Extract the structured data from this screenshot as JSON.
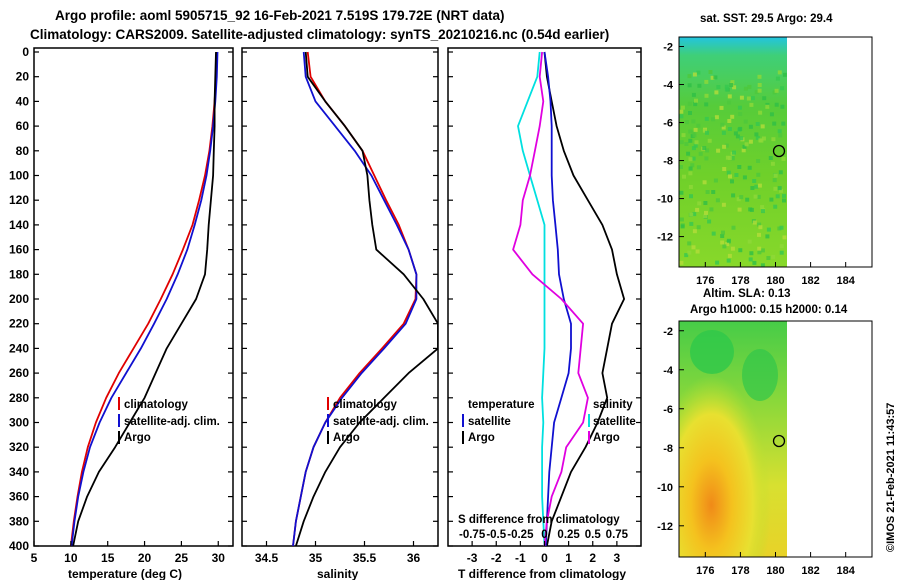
{
  "header": {
    "line1": "Argo profile: aoml 5905715_92 16-Feb-2021 7.519S 179.72E (NRT data)",
    "line2": "Climatology: CARS2009. Satellite-adjusted climatology: synTS_20210216.nc (0.54d earlier)"
  },
  "colors": {
    "climatology": "#e00000",
    "satellite": "#1010d0",
    "argo": "#000000",
    "salinity_diff": "#e000e0",
    "temperature_diff": "#00e0e0"
  },
  "chart_data": [
    {
      "type": "line",
      "panel": "temperature",
      "xlabel": "temperature (deg C)",
      "ylabel": "",
      "xlim": [
        5,
        32
      ],
      "ylim": [
        400,
        0
      ],
      "xticks": [
        5,
        10,
        15,
        20,
        25,
        30
      ],
      "yticks": [
        0,
        20,
        40,
        60,
        80,
        100,
        120,
        140,
        160,
        180,
        200,
        220,
        240,
        260,
        280,
        300,
        320,
        340,
        360,
        380,
        400
      ],
      "depth": [
        0,
        20,
        40,
        60,
        80,
        100,
        120,
        140,
        160,
        180,
        200,
        220,
        240,
        260,
        280,
        300,
        320,
        340,
        360,
        380,
        400
      ],
      "series": [
        {
          "name": "climatology",
          "values": [
            29.8,
            29.7,
            29.5,
            29.2,
            28.8,
            28.2,
            27.4,
            26.5,
            25.2,
            23.8,
            22.2,
            20.5,
            18.5,
            16.5,
            14.8,
            13.4,
            12.3,
            11.5,
            10.9,
            10.4,
            10.0
          ]
        },
        {
          "name": "satellite-adj. clim.",
          "values": [
            29.9,
            29.8,
            29.6,
            29.3,
            28.9,
            28.4,
            27.7,
            26.8,
            25.8,
            24.5,
            23.0,
            21.3,
            19.5,
            17.5,
            15.5,
            13.9,
            12.6,
            11.7,
            11.0,
            10.5,
            10.1
          ]
        },
        {
          "name": "Argo",
          "values": [
            29.7,
            29.6,
            29.5,
            29.5,
            29.4,
            29.3,
            29.0,
            28.7,
            28.5,
            28.2,
            27.0,
            25.0,
            23.0,
            21.5,
            20.0,
            18.0,
            16.0,
            13.8,
            12.2,
            11.0,
            10.3
          ]
        }
      ],
      "legend": [
        "climatology",
        "satellite-adj. clim.",
        "Argo"
      ]
    },
    {
      "type": "line",
      "panel": "salinity",
      "xlabel": "salinity",
      "xlim": [
        34.25,
        36.25
      ],
      "ylim": [
        400,
        0
      ],
      "xticks": [
        34.5,
        35,
        35.5,
        36
      ],
      "xticklabels": [
        "34.5",
        "35",
        "35.5",
        "36"
      ],
      "depth": [
        0,
        20,
        40,
        60,
        80,
        100,
        120,
        140,
        160,
        180,
        200,
        220,
        240,
        260,
        280,
        300,
        320,
        340,
        360,
        380,
        400
      ],
      "series": [
        {
          "name": "climatology",
          "values": [
            34.92,
            34.95,
            35.1,
            35.3,
            35.48,
            35.6,
            35.72,
            35.85,
            35.95,
            36.03,
            36.02,
            35.9,
            35.68,
            35.45,
            35.25,
            35.1,
            34.98,
            34.9,
            34.85,
            34.8,
            34.77
          ]
        },
        {
          "name": "satellite-adj. clim.",
          "values": [
            34.88,
            34.9,
            35.0,
            35.2,
            35.4,
            35.57,
            35.7,
            35.83,
            35.95,
            36.03,
            36.03,
            35.92,
            35.7,
            35.47,
            35.27,
            35.1,
            34.98,
            34.9,
            34.85,
            34.8,
            34.77
          ]
        },
        {
          "name": "Argo",
          "values": [
            34.9,
            34.92,
            35.1,
            35.3,
            35.48,
            35.53,
            35.55,
            35.58,
            35.62,
            35.9,
            36.1,
            36.25,
            36.25,
            35.95,
            35.7,
            35.45,
            35.25,
            35.1,
            34.98,
            34.88,
            34.8
          ]
        }
      ],
      "legend": [
        "climatology",
        "satellite-adj. clim.",
        "Argo"
      ]
    },
    {
      "type": "line",
      "panel": "difference",
      "xlabel": "T difference from climatology",
      "xlim": [
        -4,
        4
      ],
      "ylim": [
        400,
        0
      ],
      "xticks": [
        -3,
        -2,
        -1,
        0,
        1,
        2,
        3
      ],
      "top_axis_label": "S difference from climatology",
      "top_ticklabels": [
        "-0.75",
        "-0.5",
        "-0.25",
        "0",
        "0.25",
        "0.5",
        "0.75"
      ],
      "depth": [
        0,
        20,
        40,
        60,
        80,
        100,
        120,
        140,
        160,
        180,
        200,
        220,
        240,
        260,
        280,
        300,
        320,
        340,
        360,
        380,
        400
      ],
      "series": [
        {
          "name": "temperature satellite",
          "values": [
            -0.2,
            -0.3,
            -0.7,
            -1.1,
            -0.9,
            -0.6,
            -0.3,
            0.0,
            0.0,
            0.0,
            0.0,
            0.0,
            0.0,
            -0.05,
            -0.1,
            -0.05,
            -0.1,
            -0.1,
            -0.1,
            -0.05,
            0.0
          ]
        },
        {
          "name": "temperature Argo",
          "values": [
            0.0,
            0.1,
            0.3,
            0.5,
            0.8,
            1.2,
            1.8,
            2.4,
            2.8,
            3.0,
            3.3,
            2.8,
            2.6,
            2.4,
            2.6,
            2.2,
            1.7,
            1.1,
            0.7,
            0.3,
            0.1
          ]
        },
        {
          "name": "salinity satellite",
          "values": [
            0.0,
            0.15,
            0.25,
            0.3,
            0.3,
            0.3,
            0.35,
            0.45,
            0.55,
            0.6,
            0.8,
            1.1,
            1.1,
            1.0,
            0.7,
            0.4,
            0.3,
            0.2,
            0.15,
            0.1,
            0.05
          ]
        },
        {
          "name": "salinity Argo",
          "values": [
            -0.1,
            -0.2,
            -0.05,
            -0.2,
            -0.4,
            -0.6,
            -0.9,
            -1.0,
            -1.3,
            -0.5,
            0.7,
            1.6,
            1.5,
            1.4,
            1.8,
            1.6,
            0.9,
            0.7,
            0.3,
            0.1,
            0.0
          ]
        }
      ],
      "legend": {
        "temperature_title": "temperature",
        "salinity_title": "salinity",
        "satellite": "satellite",
        "argo": "Argo"
      }
    }
  ],
  "maps": [
    {
      "title": "sat. SST: 29.5 Argo: 29.4",
      "xticks": [
        "176",
        "178",
        "180",
        "182",
        "184"
      ],
      "yticks": [
        "-2",
        "-4",
        "-6",
        "-8",
        "-10",
        "-12"
      ],
      "marker": {
        "lon": 179.72,
        "lat": -7.519
      }
    },
    {
      "title_line1": "Altim. SLA: 0.13",
      "title_line2": "Argo h1000: 0.15 h2000: 0.14",
      "xticks": [
        "176",
        "178",
        "180",
        "182",
        "184"
      ],
      "yticks": [
        "-2",
        "-4",
        "-6",
        "-8",
        "-10",
        "-12"
      ],
      "marker": {
        "lon": 179.72,
        "lat": -7.519
      }
    }
  ],
  "credit": "©IMOS 21-Feb-2021 11:43:57"
}
